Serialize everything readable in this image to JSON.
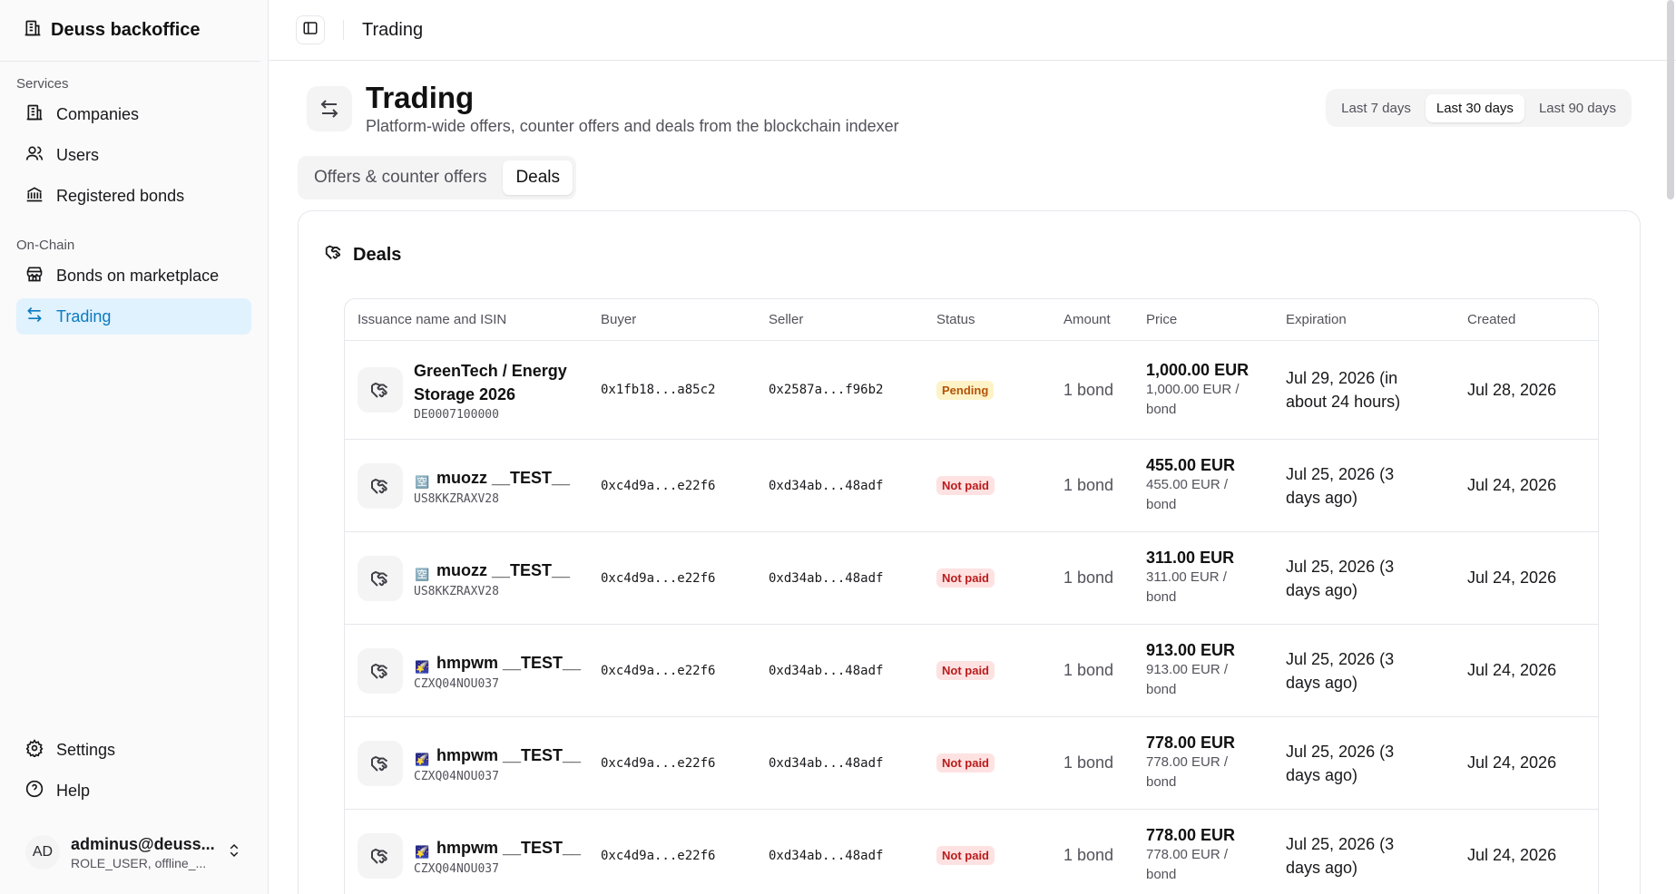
{
  "sidebar": {
    "brand": "Deuss backoffice",
    "section_services": "Services",
    "services": [
      {
        "label": "Companies",
        "icon": "building-icon"
      },
      {
        "label": "Users",
        "icon": "users-icon"
      },
      {
        "label": "Registered bonds",
        "icon": "bank-icon"
      }
    ],
    "section_onchain": "On-Chain",
    "onchain": [
      {
        "label": "Bonds on marketplace",
        "icon": "store-icon"
      },
      {
        "label": "Trading",
        "icon": "arrows-exchange-icon",
        "active": true
      }
    ],
    "footer": [
      {
        "label": "Settings",
        "icon": "gear-icon"
      },
      {
        "label": "Help",
        "icon": "help-circle-icon"
      }
    ],
    "account": {
      "initials": "AD",
      "name": "adminus@deuss...",
      "role": "ROLE_USER, offline_..."
    }
  },
  "topbar": {
    "title": "Trading"
  },
  "header": {
    "title": "Trading",
    "subtitle": "Platform-wide offers, counter offers and deals from the blockchain indexer"
  },
  "range": {
    "options": [
      "Last 7 days",
      "Last 30 days",
      "Last 90 days"
    ],
    "selected": "Last 30 days"
  },
  "tabs": {
    "items": [
      "Offers & counter offers",
      "Deals"
    ],
    "selected": "Deals"
  },
  "card": {
    "title": "Deals"
  },
  "table": {
    "headers": [
      "Issuance name and ISIN",
      "Buyer",
      "Seller",
      "Status",
      "Amount",
      "Price",
      "Expiration",
      "Created"
    ],
    "rows": [
      {
        "flag": "",
        "name": "GreenTech / Energy Storage 2026",
        "isin": "DE0007100000",
        "buyer": "0x1fb18...a85c2",
        "seller": "0x2587a...f96b2",
        "status": "Pending",
        "amount": "1 bond",
        "price": "1,000.00 EUR",
        "unit": "1,000.00 EUR / bond",
        "expiration": "Jul 29, 2026 (in about 24 hours)",
        "created": "Jul 28, 2026"
      },
      {
        "flag": "🈳",
        "name": "muozz __TEST__",
        "isin": "US8KKZRAXV28",
        "buyer": "0xc4d9a...e22f6",
        "seller": "0xd34ab...48adf",
        "status": "Not paid",
        "amount": "1 bond",
        "price": "455.00 EUR",
        "unit": "455.00 EUR / bond",
        "expiration": "Jul 25, 2026 (3 days ago)",
        "created": "Jul 24, 2026"
      },
      {
        "flag": "🈳",
        "name": "muozz __TEST__",
        "isin": "US8KKZRAXV28",
        "buyer": "0xc4d9a...e22f6",
        "seller": "0xd34ab...48adf",
        "status": "Not paid",
        "amount": "1 bond",
        "price": "311.00 EUR",
        "unit": "311.00 EUR / bond",
        "expiration": "Jul 25, 2026 (3 days ago)",
        "created": "Jul 24, 2026"
      },
      {
        "flag": "🌠",
        "name": "hmpwm __TEST__",
        "isin": "CZXQ04NOU037",
        "buyer": "0xc4d9a...e22f6",
        "seller": "0xd34ab...48adf",
        "status": "Not paid",
        "amount": "1 bond",
        "price": "913.00 EUR",
        "unit": "913.00 EUR / bond",
        "expiration": "Jul 25, 2026 (3 days ago)",
        "created": "Jul 24, 2026"
      },
      {
        "flag": "🌠",
        "name": "hmpwm __TEST__",
        "isin": "CZXQ04NOU037",
        "buyer": "0xc4d9a...e22f6",
        "seller": "0xd34ab...48adf",
        "status": "Not paid",
        "amount": "1 bond",
        "price": "778.00 EUR",
        "unit": "778.00 EUR / bond",
        "expiration": "Jul 25, 2026 (3 days ago)",
        "created": "Jul 24, 2026"
      },
      {
        "flag": "🌠",
        "name": "hmpwm __TEST__",
        "isin": "CZXQ04NOU037",
        "buyer": "0xc4d9a...e22f6",
        "seller": "0xd34ab...48adf",
        "status": "Not paid",
        "amount": "1 bond",
        "price": "778.00 EUR",
        "unit": "778.00 EUR / bond",
        "expiration": "Jul 25, 2026 (3 days ago)",
        "created": "Jul 24, 2026"
      }
    ]
  },
  "colors": {
    "accent": "#0c7abf",
    "active_bg": "#e0f2fe",
    "pending": "#b45309",
    "not_paid": "#b91c1c"
  }
}
